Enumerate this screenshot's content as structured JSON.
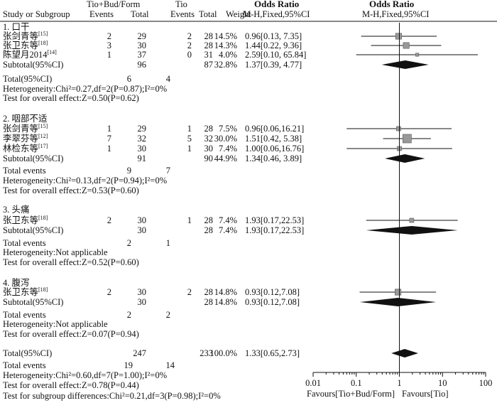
{
  "header": {
    "group1": "Tio+Bud/Form",
    "group2": "Tio",
    "study_col": "Study or Subgroup",
    "events1": "Events",
    "total1": "Total",
    "events2": "Events",
    "total2": "Total",
    "weight": "Weight",
    "or_title": "Odds Ratio",
    "or_method": "M-H,Fixed,95%CI",
    "plot_title": "Odds Ratio",
    "plot_method": "M-H,Fixed,95%CI"
  },
  "subgroups": [
    {
      "title": "1. 口干",
      "studies": [
        {
          "name": "张剑青等",
          "ref": "[15]",
          "e1": "2",
          "n1": "29",
          "e2": "2",
          "n2": "28",
          "weight": "14.5%",
          "ci_text": "0.96[0.13,  7.35]",
          "or": 0.96,
          "lo": 0.13,
          "hi": 7.35
        },
        {
          "name": "张卫东等",
          "ref": "[18]",
          "e1": "3",
          "n1": "30",
          "e2": "2",
          "n2": "28",
          "weight": "14.3%",
          "ci_text": "1.44[0.22,  9.36]",
          "or": 1.44,
          "lo": 0.22,
          "hi": 9.36
        },
        {
          "name": "陈望月2014",
          "ref": "[14]",
          "e1": "1",
          "n1": "37",
          "e2": "0",
          "n2": "31",
          "weight": "4.0%",
          "ci_text": "2.59[0.10, 65.84]",
          "or": 2.59,
          "lo": 0.1,
          "hi": 65.84
        }
      ],
      "subtotal": {
        "label": "Subtotal(95%CI)",
        "n1": "96",
        "n2": "87",
        "weight": "32.8%",
        "ci_text": "1.37[0.39,  4.77]",
        "or": 1.37,
        "lo": 0.39,
        "hi": 4.77
      },
      "total_events": {
        "label": "Total(95%CI)",
        "e1": "6",
        "e2": "4"
      },
      "heterogeneity": "Heterogeneity:Chi²=0.27,df=2(P=0.87);I²=0%",
      "overall": "Test for overall effect:Z=0.50(P=0.62)"
    },
    {
      "title": "2. 咽部不适",
      "studies": [
        {
          "name": "张剑青等",
          "ref": "[15]",
          "e1": "1",
          "n1": "29",
          "e2": "1",
          "n2": "28",
          "weight": "7.5%",
          "ci_text": "0.96[0.06,16.21]",
          "or": 0.96,
          "lo": 0.06,
          "hi": 16.21
        },
        {
          "name": "李翠芬等",
          "ref": "[12]",
          "e1": "7",
          "n1": "32",
          "e2": "5",
          "n2": "32",
          "weight": "30.0%",
          "ci_text": "1.51[0.42,  5.38]",
          "or": 1.51,
          "lo": 0.42,
          "hi": 5.38
        },
        {
          "name": "林检东等",
          "ref": "[17]",
          "e1": "1",
          "n1": "30",
          "e2": "1",
          "n2": "30",
          "weight": "7.4%",
          "ci_text": "1.00[0.06,16.76]",
          "or": 1.0,
          "lo": 0.06,
          "hi": 16.76
        }
      ],
      "subtotal": {
        "label": "Subtotal(95%CI)",
        "n1": "91",
        "n2": "90",
        "weight": "44.9%",
        "ci_text": "1.34[0.46,  3.89]",
        "or": 1.34,
        "lo": 0.46,
        "hi": 3.89
      },
      "total_events": {
        "label": "Total events",
        "e1": "9",
        "e2": "7"
      },
      "heterogeneity": "Heterogeneity:Chi²=0.13,df=2(P=0.94);I²=0%",
      "overall": "Test for overall effect:Z=0.53(P=0.60)"
    },
    {
      "title": "3. 头痛",
      "studies": [
        {
          "name": "张卫东等",
          "ref": "[18]",
          "e1": "2",
          "n1": "30",
          "e2": "1",
          "n2": "28",
          "weight": "7.4%",
          "ci_text": "1.93[0.17,22.53]",
          "or": 1.93,
          "lo": 0.17,
          "hi": 22.53
        }
      ],
      "subtotal": {
        "label": "Subtotal(95%CI)",
        "n1": "30",
        "n2": "28",
        "weight": "7.4%",
        "ci_text": "1.93[0.17,22.53]",
        "or": 1.93,
        "lo": 0.17,
        "hi": 22.53
      },
      "total_events": {
        "label": "Total events",
        "e1": "2",
        "e2": "1"
      },
      "heterogeneity": "Heterogeneity:Not applicable",
      "overall": "Test for overall effect:Z=0.52(P=0.60)"
    },
    {
      "title": "4. 腹泻",
      "studies": [
        {
          "name": "张卫东等",
          "ref": "[18]",
          "e1": "2",
          "n1": "30",
          "e2": "2",
          "n2": "28",
          "weight": "14.8%",
          "ci_text": "0.93[0.12,7.08]",
          "or": 0.93,
          "lo": 0.12,
          "hi": 7.08
        }
      ],
      "subtotal": {
        "label": "Subtotal(95%CI)",
        "n1": "30",
        "n2": "28",
        "weight": "14.8%",
        "ci_text": "0.93[0.12,7.08]",
        "or": 0.93,
        "lo": 0.12,
        "hi": 7.08
      },
      "total_events": {
        "label": "Total events",
        "e1": "2",
        "e2": "2"
      },
      "heterogeneity": "Heterogeneity:Not applicable",
      "overall": "Test for overall effect:Z=0.07(P=0.94)"
    }
  ],
  "overall": {
    "label": "Total(95%CI)",
    "n1": "247",
    "n2": "233",
    "weight": "100.0%",
    "ci_text": "1.33[0.65,2.73]",
    "or": 1.33,
    "lo": 0.65,
    "hi": 2.73,
    "events_label": "Total events",
    "e1": "19",
    "e2": "14",
    "heterogeneity": "Heterogeneity:Chi²=0.60,df=7(P=1.00);I²=0%",
    "overall_effect": "Test for overall effect:Z=0.78(P=0.44)",
    "subgroup_diff": "Test for subgroup differences:Chi²=0.21,df=3(P=0.98);I²=0%"
  },
  "chart_data": {
    "type": "forest",
    "xscale": "log",
    "xlim": [
      0.01,
      100
    ],
    "ticks": [
      0.01,
      0.1,
      1,
      10,
      100
    ],
    "tick_labels": [
      "0.01",
      "0.1",
      "1",
      "10",
      "100"
    ],
    "favours_left": "Favours[Tio+Bud/Form]",
    "favours_right": "Favours[Tio]",
    "null_value": 1
  },
  "colors": {
    "ink": "#111111",
    "marker": "#999999"
  }
}
